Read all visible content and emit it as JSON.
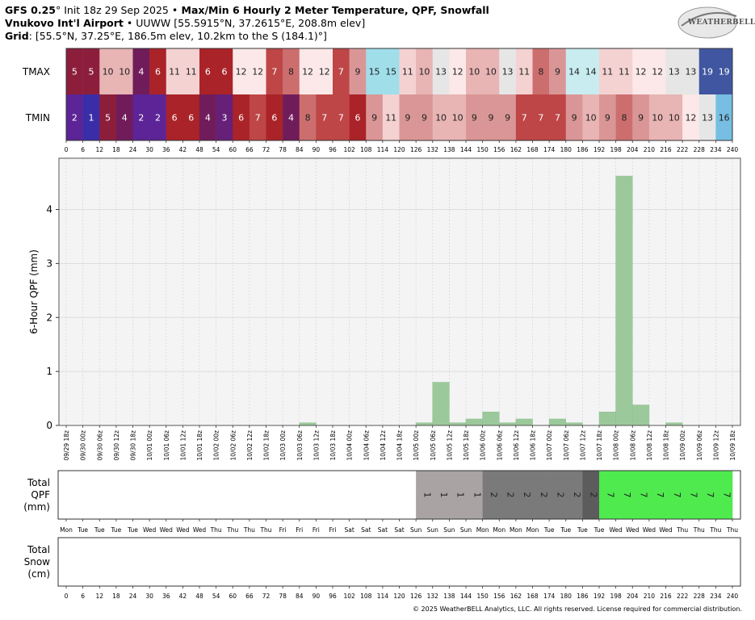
{
  "header": {
    "line1_model": "GFS 0.25",
    "line1_init": "° Init 18z 29 Sep 2025 •",
    "line1_title": " Max/Min 6 Hourly 2 Meter Temperature, QPF, Snowfall",
    "line2_station": "Vnukovo Int'l Airport",
    "line2_rest": " • UUWW [55.5915°N, 37.2615°E, 208.8m elev]",
    "line3_grid": "Grid",
    "line3_rest": ": [55.5°N, 37.25°E, 186.5m elev, 10.2km to the S (184.1)°]"
  },
  "logo": {
    "text": "WEATHERBELL",
    "sub": "Analytics LLC"
  },
  "copyright": "© 2025 WeatherBELL Analytics, LLC. All rights reserved. License required for commercial distribution.",
  "chart_data": {
    "type": "bar",
    "forecast_hours": [
      0,
      6,
      12,
      18,
      24,
      30,
      36,
      42,
      48,
      54,
      60,
      66,
      72,
      78,
      84,
      90,
      96,
      102,
      108,
      114,
      120,
      126,
      132,
      138,
      144,
      150,
      156,
      162,
      168,
      174,
      180,
      186,
      192,
      198,
      204,
      210,
      216,
      222,
      228,
      234,
      240
    ],
    "valid_times": [
      "09/29 18z",
      "09/30 00z",
      "09/30 06z",
      "09/30 12z",
      "09/30 18z",
      "10/01 00z",
      "10/01 06z",
      "10/01 12z",
      "10/01 18z",
      "10/02 00z",
      "10/02 06z",
      "10/02 12z",
      "10/02 18z",
      "10/03 00z",
      "10/03 06z",
      "10/03 12z",
      "10/03 18z",
      "10/04 00z",
      "10/04 06z",
      "10/04 12z",
      "10/04 18z",
      "10/05 00z",
      "10/05 06z",
      "10/05 12z",
      "10/05 18z",
      "10/06 00z",
      "10/06 06z",
      "10/06 12z",
      "10/06 18z",
      "10/07 00z",
      "10/07 06z",
      "10/07 12z",
      "10/07 18z",
      "10/08 00z",
      "10/08 06z",
      "10/08 12z",
      "10/08 18z",
      "10/09 00z",
      "10/09 06z",
      "10/09 12z",
      "10/09 18z"
    ],
    "days": [
      "Mon",
      "Tue",
      "Tue",
      "Tue",
      "Tue",
      "Wed",
      "Wed",
      "Wed",
      "Wed",
      "Thu",
      "Thu",
      "Thu",
      "Thu",
      "Fri",
      "Fri",
      "Fri",
      "Fri",
      "Sat",
      "Sat",
      "Sat",
      "Sat",
      "Sun",
      "Sun",
      "Sun",
      "Sun",
      "Mon",
      "Mon",
      "Mon",
      "Mon",
      "Tue",
      "Tue",
      "Tue",
      "Tue",
      "Wed",
      "Wed",
      "Wed",
      "Wed",
      "Thu",
      "Thu",
      "Thu",
      "Thu"
    ],
    "tmax": [
      5,
      5,
      10,
      10,
      4,
      6,
      11,
      11,
      6,
      6,
      12,
      12,
      7,
      8,
      12,
      12,
      7,
      9,
      15,
      15,
      11,
      10,
      13,
      12,
      10,
      10,
      13,
      11,
      8,
      9,
      14,
      14,
      11,
      11,
      12,
      12,
      13,
      13,
      19,
      19
    ],
    "tmin": [
      2,
      1,
      5,
      4,
      2,
      2,
      6,
      6,
      4,
      3,
      6,
      7,
      6,
      4,
      8,
      7,
      7,
      6,
      9,
      11,
      9,
      9,
      10,
      10,
      9,
      9,
      9,
      7,
      7,
      7,
      9,
      10,
      9,
      8,
      9,
      10,
      10,
      12,
      13,
      16
    ],
    "qpf": [
      0,
      0,
      0,
      0,
      0,
      0,
      0,
      0,
      0,
      0,
      0,
      0,
      0,
      0,
      0.05,
      0,
      0,
      0,
      0,
      0,
      0,
      0.05,
      0.8,
      0.05,
      0.12,
      0.25,
      0.05,
      0.12,
      0,
      0.12,
      0.05,
      0,
      0.25,
      4.62,
      0.38,
      0,
      0.05,
      0,
      0,
      0,
      0
    ],
    "total_qpf": [
      null,
      null,
      null,
      null,
      null,
      null,
      null,
      null,
      null,
      null,
      null,
      null,
      null,
      null,
      null,
      null,
      null,
      null,
      null,
      null,
      null,
      1,
      1,
      1,
      1,
      2,
      2,
      2,
      2,
      2,
      2,
      2,
      7,
      7,
      7,
      7,
      7,
      7,
      7,
      7
    ],
    "total_snow": [],
    "ylabel": "6-Hour QPF (mm)",
    "ylim": [
      0,
      4.95
    ],
    "yticks": [
      0,
      1,
      2,
      3,
      4
    ],
    "row_labels": {
      "tmax": "TMAX",
      "tmin": "TMIN"
    },
    "total_qpf_label": [
      "Total",
      "QPF",
      "(mm)"
    ],
    "total_snow_label": [
      "Total",
      "Snow",
      "(cm)"
    ],
    "colors": {
      "bar": "#9bc99b",
      "tqpf_light": "#a9a3a3",
      "tqpf_mid": "#7a7a7a",
      "tqpf_dark": "#5c5c5c",
      "tqpf_high": "#4eea4e"
    }
  }
}
